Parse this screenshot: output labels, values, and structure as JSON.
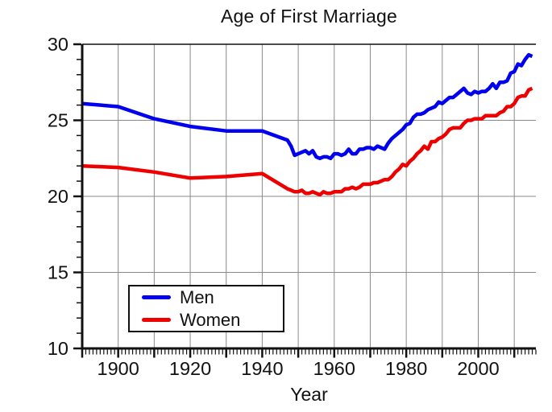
{
  "chart_data": {
    "type": "line",
    "title": "Age of First Marriage",
    "xlabel": "Year",
    "ylabel": "",
    "xlim": [
      1890,
      2016
    ],
    "ylim": [
      10,
      30
    ],
    "grid": "on",
    "grid_color": "#8a8a8a",
    "axis_color": "#111111",
    "background_color": "#ffffff",
    "x_tick_labels": [
      "1900",
      "1920",
      "1940",
      "1960",
      "1980",
      "2000"
    ],
    "x_labeled_tick_years": [
      1900,
      1920,
      1940,
      1960,
      1980,
      2000
    ],
    "x_major_tick_step": 10,
    "x_minor_tick_step": 1,
    "y_major_ticks": [
      10,
      15,
      20,
      25,
      30
    ],
    "y_minor_tick_step": 1,
    "horizontal_gridline_values": [
      15,
      20,
      25
    ],
    "vertical_gridline_years": [
      1900,
      1910,
      1920,
      1930,
      1940,
      1950,
      1960,
      1970,
      1980,
      1990,
      2000,
      2010
    ],
    "legend_position": "lower-left",
    "x": [
      1890,
      1900,
      1910,
      1920,
      1930,
      1940,
      1947,
      1948,
      1949,
      1950,
      1951,
      1952,
      1953,
      1954,
      1955,
      1956,
      1957,
      1958,
      1959,
      1960,
      1961,
      1962,
      1963,
      1964,
      1965,
      1966,
      1967,
      1968,
      1969,
      1970,
      1971,
      1972,
      1973,
      1974,
      1975,
      1976,
      1977,
      1978,
      1979,
      1980,
      1981,
      1982,
      1983,
      1984,
      1985,
      1986,
      1987,
      1988,
      1989,
      1990,
      1991,
      1992,
      1993,
      1994,
      1995,
      1996,
      1997,
      1998,
      1999,
      2000,
      2001,
      2002,
      2003,
      2004,
      2005,
      2006,
      2007,
      2008,
      2009,
      2010,
      2011,
      2012,
      2013,
      2014,
      2015
    ],
    "series": [
      {
        "name": "Men",
        "color": "#0000ee",
        "values": [
          26.1,
          25.9,
          25.1,
          24.6,
          24.3,
          24.3,
          23.7,
          23.3,
          22.7,
          22.8,
          22.9,
          23.0,
          22.8,
          23.0,
          22.6,
          22.5,
          22.6,
          22.6,
          22.5,
          22.8,
          22.8,
          22.7,
          22.8,
          23.1,
          22.8,
          22.8,
          23.1,
          23.1,
          23.2,
          23.2,
          23.1,
          23.3,
          23.2,
          23.1,
          23.5,
          23.8,
          24.0,
          24.2,
          24.4,
          24.7,
          24.8,
          25.2,
          25.4,
          25.4,
          25.5,
          25.7,
          25.8,
          25.9,
          26.2,
          26.1,
          26.3,
          26.5,
          26.5,
          26.7,
          26.9,
          27.1,
          26.8,
          26.7,
          26.9,
          26.8,
          26.9,
          26.9,
          27.1,
          27.4,
          27.1,
          27.5,
          27.5,
          27.6,
          28.1,
          28.2,
          28.7,
          28.6,
          29.0,
          29.3,
          29.2
        ]
      },
      {
        "name": "Women",
        "color": "#ee0000",
        "values": [
          22.0,
          21.9,
          21.6,
          21.2,
          21.3,
          21.5,
          20.5,
          20.4,
          20.3,
          20.3,
          20.4,
          20.2,
          20.2,
          20.3,
          20.2,
          20.1,
          20.3,
          20.2,
          20.2,
          20.3,
          20.3,
          20.3,
          20.5,
          20.5,
          20.6,
          20.5,
          20.6,
          20.8,
          20.8,
          20.8,
          20.9,
          20.9,
          21.0,
          21.1,
          21.1,
          21.3,
          21.6,
          21.8,
          22.1,
          22.0,
          22.3,
          22.5,
          22.8,
          23.0,
          23.3,
          23.1,
          23.6,
          23.6,
          23.8,
          23.9,
          24.1,
          24.4,
          24.5,
          24.5,
          24.5,
          24.8,
          25.0,
          25.0,
          25.1,
          25.1,
          25.1,
          25.3,
          25.3,
          25.3,
          25.3,
          25.5,
          25.6,
          25.9,
          25.9,
          26.1,
          26.5,
          26.6,
          26.6,
          27.0,
          27.1
        ]
      }
    ]
  }
}
